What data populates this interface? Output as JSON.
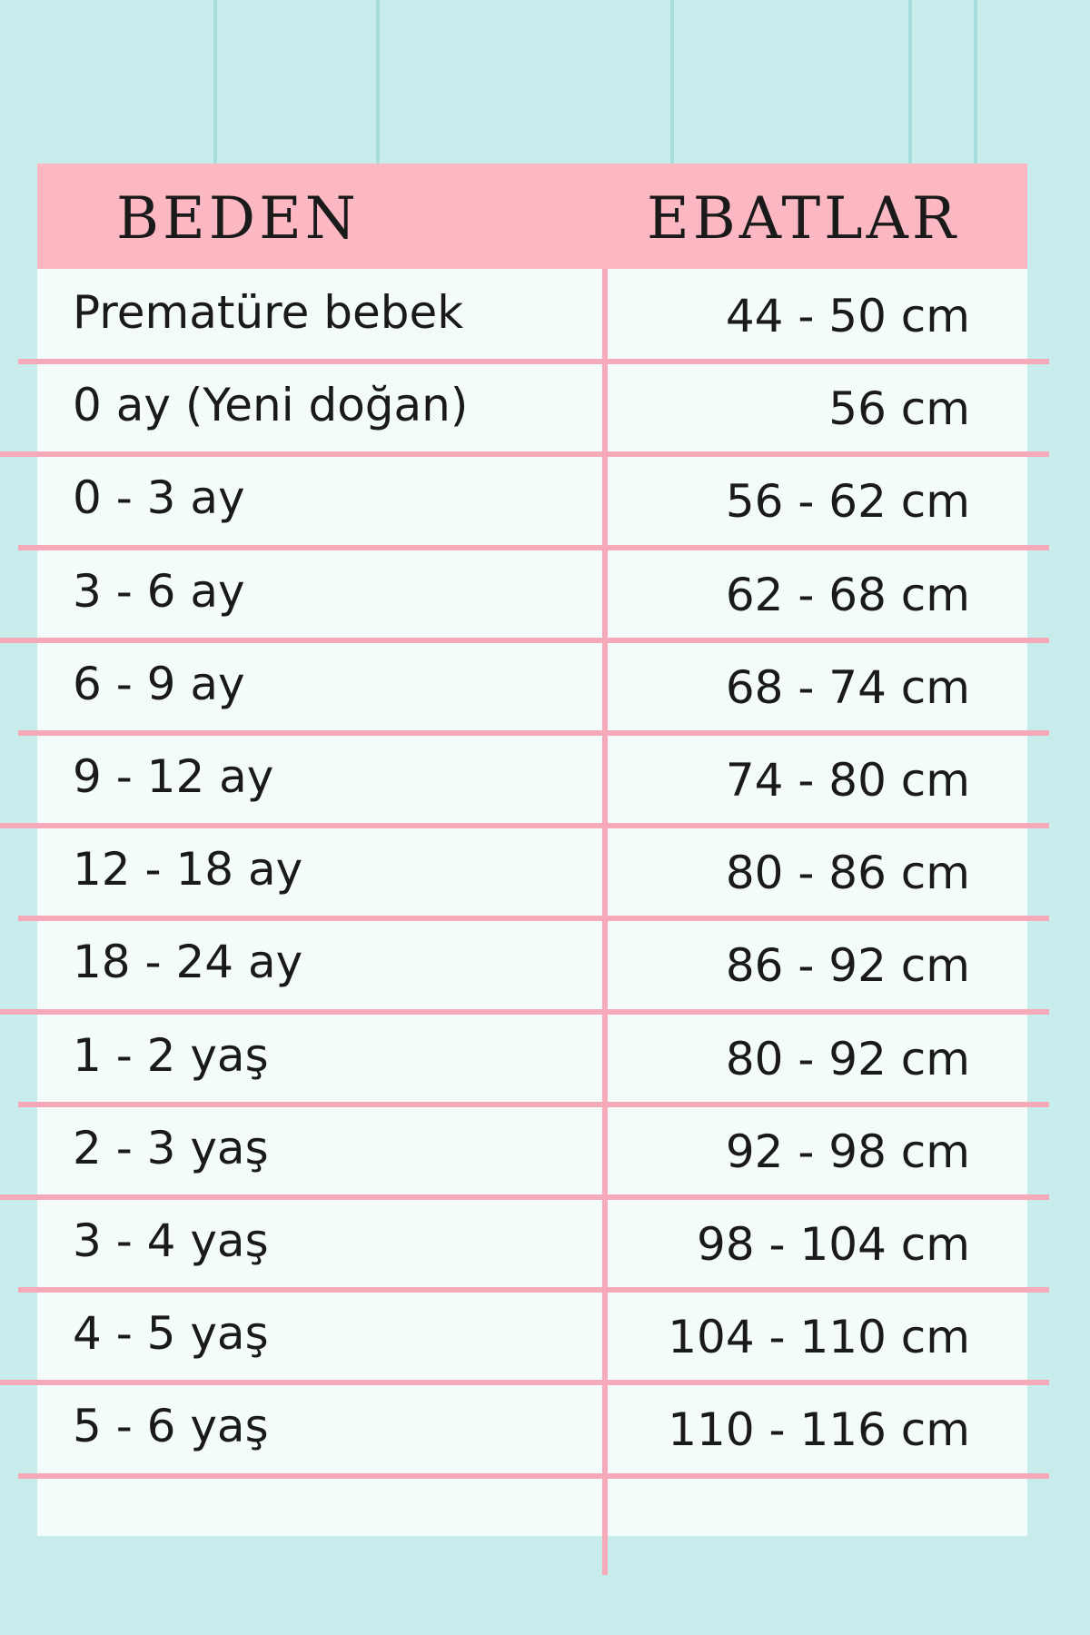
{
  "header": {
    "columns": [
      "BEDEN",
      "EBATLAR"
    ]
  },
  "table": {
    "rows": [
      [
        "Prematüre bebek",
        "44 - 50 cm"
      ],
      [
        "0 ay (Yeni doğan)",
        "56 cm"
      ],
      [
        "0 - 3 ay",
        "56 - 62 cm"
      ],
      [
        "3 - 6 ay",
        "62 - 68 cm"
      ],
      [
        "6 - 9 ay",
        "68 - 74 cm"
      ],
      [
        "9 - 12 ay",
        "74 - 80 cm"
      ],
      [
        "12 - 18 ay",
        "80 - 86 cm"
      ],
      [
        "18 - 24 ay",
        "86 - 92 cm"
      ],
      [
        "1 - 2 yaş",
        "80 - 92 cm"
      ],
      [
        "2 - 3 yaş",
        "92 - 98 cm"
      ],
      [
        "3 - 4 yaş",
        "98 - 104 cm"
      ],
      [
        "4 - 5 yaş",
        "104 - 110 cm"
      ],
      [
        "5 - 6 yaş",
        "110 - 116 cm"
      ]
    ]
  }
}
